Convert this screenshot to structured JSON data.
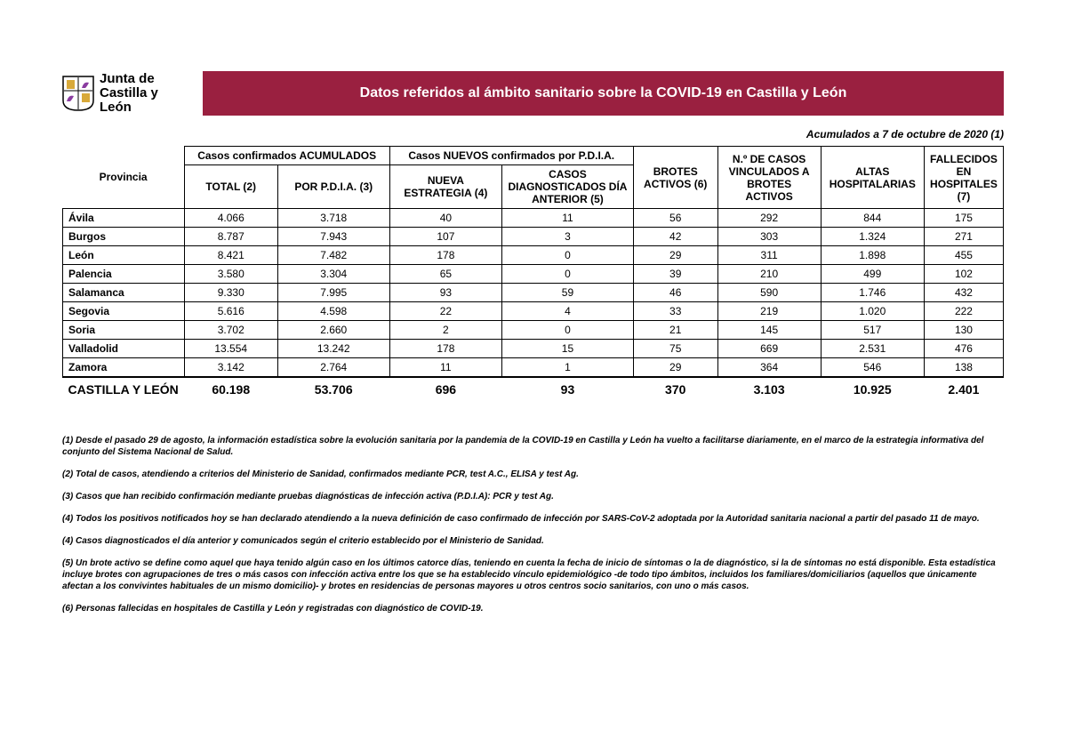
{
  "header": {
    "org_line1": "Junta de",
    "org_line2": "Castilla y León",
    "title": "Datos referidos al ámbito sanitario sobre la COVID-19 en Castilla y León",
    "date_line": "Acumulados a 7 de octubre de 2020 (1)",
    "crest_colors": {
      "flag": "#9a2040",
      "castle": "#d8a93a",
      "lion": "#8a3ca0",
      "outline": "#000000"
    }
  },
  "colors": {
    "title_bg": "#9a2040",
    "title_fg": "#ffffff",
    "border": "#000000",
    "text": "#000000",
    "page_bg": "#ffffff"
  },
  "table": {
    "group_headers": {
      "col0": "Provincia",
      "grp1": "Casos confirmados ACUMULADOS",
      "grp2": "Casos NUEVOS confirmados por P.D.I.A.",
      "col5": "BROTES ACTIVOS (6)",
      "col6": "N.º DE CASOS VINCULADOS A BROTES ACTIVOS",
      "col7": "ALTAS HOSPITALARIAS",
      "col8": "FALLECIDOS EN HOSPITALES (7)"
    },
    "sub_headers": {
      "c1": "TOTAL (2)",
      "c2": "POR P.D.I.A. (3)",
      "c3": "NUEVA ESTRATEGIA (4)",
      "c4": "CASOS DIAGNOSTICADOS DÍA ANTERIOR (5)"
    },
    "rows": [
      {
        "prov": "Ávila",
        "c1": "4.066",
        "c2": "3.718",
        "c3": "40",
        "c4": "11",
        "c5": "56",
        "c6": "292",
        "c7": "844",
        "c8": "175"
      },
      {
        "prov": "Burgos",
        "c1": "8.787",
        "c2": "7.943",
        "c3": "107",
        "c4": "3",
        "c5": "42",
        "c6": "303",
        "c7": "1.324",
        "c8": "271"
      },
      {
        "prov": "León",
        "c1": "8.421",
        "c2": "7.482",
        "c3": "178",
        "c4": "0",
        "c5": "29",
        "c6": "311",
        "c7": "1.898",
        "c8": "455"
      },
      {
        "prov": "Palencia",
        "c1": "3.580",
        "c2": "3.304",
        "c3": "65",
        "c4": "0",
        "c5": "39",
        "c6": "210",
        "c7": "499",
        "c8": "102"
      },
      {
        "prov": "Salamanca",
        "c1": "9.330",
        "c2": "7.995",
        "c3": "93",
        "c4": "59",
        "c5": "46",
        "c6": "590",
        "c7": "1.746",
        "c8": "432"
      },
      {
        "prov": "Segovia",
        "c1": "5.616",
        "c2": "4.598",
        "c3": "22",
        "c4": "4",
        "c5": "33",
        "c6": "219",
        "c7": "1.020",
        "c8": "222"
      },
      {
        "prov": "Soria",
        "c1": "3.702",
        "c2": "2.660",
        "c3": "2",
        "c4": "0",
        "c5": "21",
        "c6": "145",
        "c7": "517",
        "c8": "130"
      },
      {
        "prov": "Valladolid",
        "c1": "13.554",
        "c2": "13.242",
        "c3": "178",
        "c4": "15",
        "c5": "75",
        "c6": "669",
        "c7": "2.531",
        "c8": "476"
      },
      {
        "prov": "Zamora",
        "c1": "3.142",
        "c2": "2.764",
        "c3": "11",
        "c4": "1",
        "c5": "29",
        "c6": "364",
        "c7": "546",
        "c8": "138"
      }
    ],
    "total": {
      "prov": "CASTILLA Y LEÓN",
      "c1": "60.198",
      "c2": "53.706",
      "c3": "696",
      "c4": "93",
      "c5": "370",
      "c6": "3.103",
      "c7": "10.925",
      "c8": "2.401"
    },
    "col_widths_pct": [
      13,
      10,
      12,
      12,
      14,
      9,
      11,
      11,
      8
    ]
  },
  "notes": [
    "(1) Desde el pasado 29 de agosto, la información estadística sobre la evolución sanitaria por la pandemia de la COVID-19 en Castilla y León ha vuelto a facilitarse diariamente, en el marco de la estrategia informativa del conjunto del Sistema Nacional de Salud.",
    "(2) Total de casos, atendiendo a criterios del Ministerio de Sanidad, confirmados mediante PCR, test A.C., ELISA y test Ag.",
    "(3) Casos que han recibido confirmación mediante pruebas diagnósticas de infección activa (P.D.I.A): PCR y test Ag.",
    "(4) Todos los positivos notificados hoy se han declarado atendiendo a la nueva definición de caso confirmado de infección por SARS-CoV-2 adoptada por la Autoridad sanitaria nacional a partir del pasado 11 de mayo.",
    "(4) Casos diagnosticados el día anterior y comunicados según el criterio establecido por el Ministerio de Sanidad.",
    "(5) Un brote activo se define como aquel que haya tenido algún caso en los últimos catorce días, teniendo en cuenta la fecha de inicio de síntomas o la de diagnóstico, si la de síntomas no está disponible. Esta estadística incluye brotes con agrupaciones de tres o más casos con infección activa entre los que se ha establecido vínculo epidemiológico -de todo tipo ámbitos, incluidos los familiares/domiciliarios (aquellos que únicamente afectan a los convivintes habituales de un mismo domicilio)- y brotes en residencias de personas mayores u otros centros socio sanitarios, con uno o más casos.",
    "(6) Personas fallecidas en hospitales de Castilla y León y registradas con diagnóstico de COVID-19."
  ]
}
